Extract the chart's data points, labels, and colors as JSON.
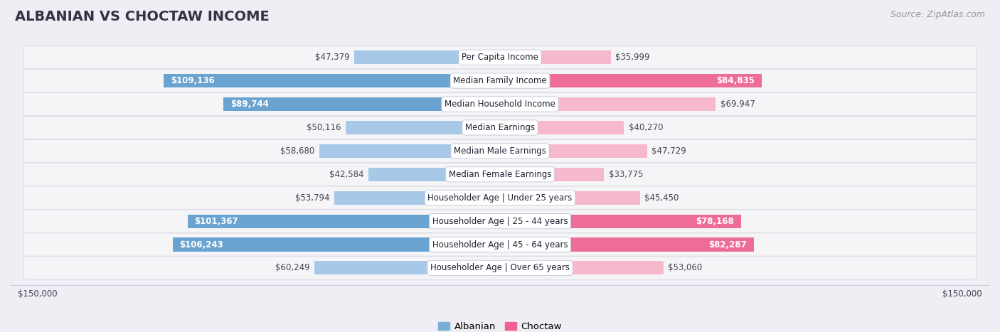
{
  "title": "ALBANIAN VS CHOCTAW INCOME",
  "source": "Source: ZipAtlas.com",
  "categories": [
    "Per Capita Income",
    "Median Family Income",
    "Median Household Income",
    "Median Earnings",
    "Median Male Earnings",
    "Median Female Earnings",
    "Householder Age | Under 25 years",
    "Householder Age | 25 - 44 years",
    "Householder Age | 45 - 64 years",
    "Householder Age | Over 65 years"
  ],
  "albanian_values": [
    47379,
    109136,
    89744,
    50116,
    58680,
    42584,
    53794,
    101367,
    106243,
    60249
  ],
  "choctaw_values": [
    35999,
    84835,
    69947,
    40270,
    47729,
    33775,
    45450,
    78168,
    82287,
    53060
  ],
  "albanian_labels": [
    "$47,379",
    "$109,136",
    "$89,744",
    "$50,116",
    "$58,680",
    "$42,584",
    "$53,794",
    "$101,367",
    "$106,243",
    "$60,249"
  ],
  "choctaw_labels": [
    "$35,999",
    "$84,835",
    "$69,947",
    "$40,270",
    "$47,729",
    "$33,775",
    "$45,450",
    "$78,168",
    "$82,287",
    "$53,060"
  ],
  "max_value": 150000,
  "alb_color_light": "#a8c8e8",
  "alb_color_dark": "#6aa3d0",
  "cho_color_light": "#f5b8cc",
  "cho_color_dark": "#ee6d97",
  "alb_legend_color": "#7aaed6",
  "cho_legend_color": "#f06090",
  "background_color": "#eeeef4",
  "row_bg_color": "#f5f5f8",
  "row_border_color": "#d8d8e0",
  "label_inside_color": "#ffffff",
  "label_outside_color": "#444455",
  "title_color": "#333344",
  "source_color": "#999999",
  "title_fontsize": 14,
  "source_fontsize": 9,
  "cat_fontsize": 8.5,
  "val_fontsize": 8.5,
  "axis_fontsize": 8.5,
  "inside_threshold": 75000
}
